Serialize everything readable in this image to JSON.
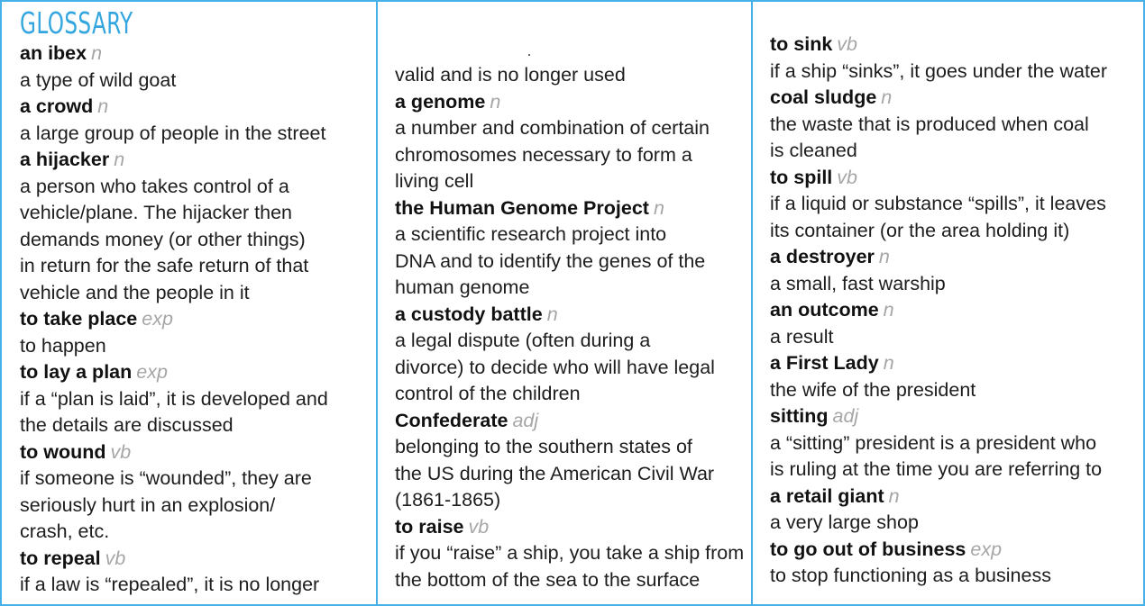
{
  "heading": "GLOSSARY",
  "columns": [
    {
      "lines": [
        {
          "kind": "term",
          "text": "an ibex",
          "pos": "n"
        },
        {
          "kind": "def",
          "text": "a type of wild goat"
        },
        {
          "kind": "term",
          "text": "a crowd",
          "pos": "n"
        },
        {
          "kind": "def",
          "text": "a large group of people in the street"
        },
        {
          "kind": "term",
          "text": "a hijacker",
          "pos": "n"
        },
        {
          "kind": "def",
          "text": "a person who takes control of a"
        },
        {
          "kind": "def",
          "text": "vehicle/plane. The hijacker then"
        },
        {
          "kind": "def",
          "text": "demands money (or other things)"
        },
        {
          "kind": "def",
          "text": "in return for the safe return of that"
        },
        {
          "kind": "def",
          "text": "vehicle and the people in it"
        },
        {
          "kind": "term",
          "text": "to take place",
          "pos": "exp"
        },
        {
          "kind": "def",
          "text": "to happen"
        },
        {
          "kind": "term",
          "text": "to lay a plan",
          "pos": "exp"
        },
        {
          "kind": "def",
          "text": "if a “plan is laid”, it is developed and"
        },
        {
          "kind": "def",
          "text": "the details are discussed"
        },
        {
          "kind": "term",
          "text": "to wound",
          "pos": "vb"
        },
        {
          "kind": "def",
          "text": "if someone is “wounded”, they are"
        },
        {
          "kind": "def",
          "text": "seriously hurt in an explosion/"
        },
        {
          "kind": "def",
          "text": "crash, etc."
        },
        {
          "kind": "term",
          "text": "to repeal",
          "pos": "vb"
        },
        {
          "kind": "def",
          "text": "if a law is “repealed”, it is no longer"
        }
      ]
    },
    {
      "lines": [
        {
          "kind": "def",
          "text": "valid and is no longer used"
        },
        {
          "kind": "term",
          "text": "a genome",
          "pos": "n"
        },
        {
          "kind": "def",
          "text": "a number and combination of certain"
        },
        {
          "kind": "def",
          "text": "chromosomes necessary to form a"
        },
        {
          "kind": "def",
          "text": "living cell"
        },
        {
          "kind": "term",
          "text": "the Human Genome Project",
          "pos": "n"
        },
        {
          "kind": "def",
          "text": "a scientific research project into"
        },
        {
          "kind": "def",
          "text": "DNA and to identify the genes of the"
        },
        {
          "kind": "def",
          "text": "human genome"
        },
        {
          "kind": "term",
          "text": "a custody battle",
          "pos": "n"
        },
        {
          "kind": "def",
          "text": "a legal dispute (often during a"
        },
        {
          "kind": "def",
          "text": "divorce) to decide who will have legal"
        },
        {
          "kind": "def",
          "text": "control of the children"
        },
        {
          "kind": "term",
          "text": "Confederate",
          "pos": "adj"
        },
        {
          "kind": "def",
          "text": "belonging to the southern states of"
        },
        {
          "kind": "def",
          "text": "the US during the American Civil War"
        },
        {
          "kind": "def",
          "text": "(1861-1865)"
        },
        {
          "kind": "term",
          "text": "to raise",
          "pos": "vb"
        },
        {
          "kind": "def",
          "text": "if you “raise” a ship, you take a ship from"
        },
        {
          "kind": "def",
          "text": "the bottom of the sea to the surface"
        }
      ]
    },
    {
      "lines": [
        {
          "kind": "term",
          "text": "to sink",
          "pos": "vb"
        },
        {
          "kind": "def",
          "text": "if a ship “sinks”, it goes under the water"
        },
        {
          "kind": "term",
          "text": "coal sludge",
          "pos": "n"
        },
        {
          "kind": "def",
          "text": "the waste that is produced when coal"
        },
        {
          "kind": "def",
          "text": "is cleaned"
        },
        {
          "kind": "term",
          "text": "to spill",
          "pos": "vb"
        },
        {
          "kind": "def",
          "text": "if a liquid or substance “spills”, it leaves"
        },
        {
          "kind": "def",
          "text": "its container (or the area holding it)"
        },
        {
          "kind": "term",
          "text": "a destroyer",
          "pos": "n"
        },
        {
          "kind": "def",
          "text": "a small, fast warship"
        },
        {
          "kind": "term",
          "text": "an outcome",
          "pos": "n"
        },
        {
          "kind": "def",
          "text": "a result"
        },
        {
          "kind": "term",
          "text": "a First Lady",
          "pos": "n"
        },
        {
          "kind": "def",
          "text": "the wife of the president"
        },
        {
          "kind": "term",
          "text": "sitting",
          "pos": "adj"
        },
        {
          "kind": "def",
          "text": "a “sitting” president is a president who"
        },
        {
          "kind": "def",
          "text": "is ruling at the time you are referring to"
        },
        {
          "kind": "term",
          "text": "a retail giant",
          "pos": "n"
        },
        {
          "kind": "def",
          "text": "a very large shop"
        },
        {
          "kind": "term",
          "text": "to go out of business",
          "pos": "exp"
        },
        {
          "kind": "def",
          "text": "to stop functioning as a business"
        }
      ]
    }
  ]
}
